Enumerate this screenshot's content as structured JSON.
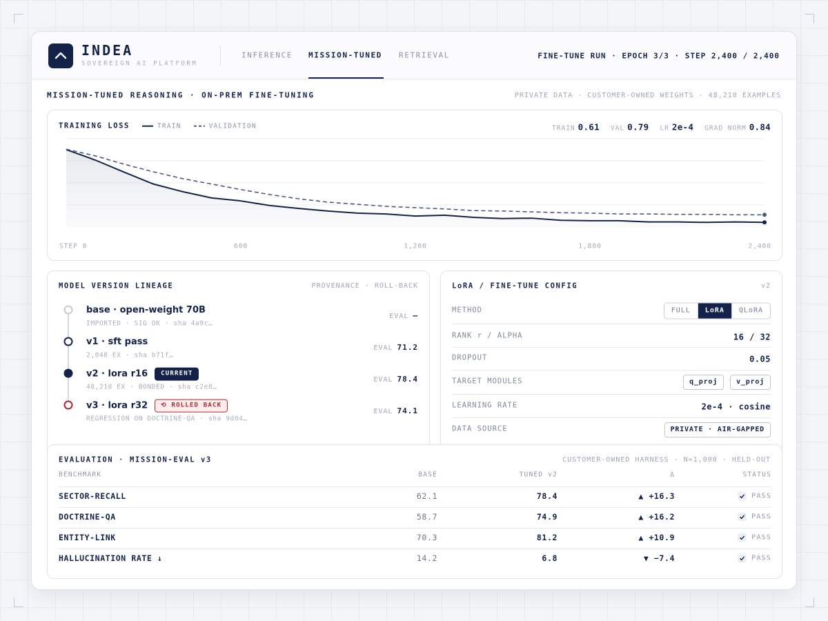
{
  "header": {
    "logo": "INDEA",
    "tagline": "SOVEREIGN AI PLATFORM",
    "tabs": [
      "INFERENCE",
      "MISSION-TUNED",
      "RETRIEVAL"
    ],
    "active_tab": 1,
    "run_status": "FINE-TUNE RUN · EPOCH 3/3 · STEP 2,400 / 2,400"
  },
  "section": {
    "title": "MISSION-TUNED REASONING  ·  ON-PREM FINE-TUNING",
    "meta": "PRIVATE DATA · CUSTOMER-OWNED WEIGHTS · 48,210 EXAMPLES"
  },
  "chart_data": {
    "type": "line",
    "title": "TRAINING LOSS",
    "stats": [
      {
        "label": "TRAIN",
        "value": 0.61
      },
      {
        "label": "VAL",
        "value": 0.79
      },
      {
        "label": "LR",
        "value": "2e-4"
      },
      {
        "label": "GRAD NORM",
        "value": 0.84
      }
    ],
    "x": [
      0,
      100,
      200,
      300,
      400,
      500,
      600,
      700,
      800,
      900,
      1000,
      1100,
      1200,
      1300,
      1400,
      1500,
      1600,
      1700,
      1800,
      1900,
      2000,
      2100,
      2200,
      2300,
      2400
    ],
    "series": [
      {
        "name": "TRAIN",
        "color": "#14224a",
        "dash": false,
        "area": true,
        "values": [
          2.34,
          2.09,
          1.8,
          1.52,
          1.34,
          1.19,
          1.12,
          1.01,
          0.94,
          0.88,
          0.83,
          0.81,
          0.76,
          0.78,
          0.73,
          0.7,
          0.71,
          0.66,
          0.65,
          0.65,
          0.62,
          0.62,
          0.61,
          0.62,
          0.61
        ]
      },
      {
        "name": "VALIDATION",
        "color": "#4a5a85",
        "dash": true,
        "area": false,
        "values": [
          2.35,
          2.19,
          1.99,
          1.81,
          1.65,
          1.52,
          1.39,
          1.27,
          1.17,
          1.09,
          1.04,
          0.99,
          0.96,
          0.93,
          0.89,
          0.88,
          0.86,
          0.84,
          0.83,
          0.81,
          0.81,
          0.8,
          0.8,
          0.79,
          0.79
        ]
      }
    ],
    "xlim": [
      0,
      2400
    ],
    "xticks": [
      {
        "value": 0,
        "label": "STEP 0"
      },
      600,
      {
        "value": 1200,
        "label": "1,200"
      },
      {
        "value": 1800,
        "label": "1,800"
      },
      {
        "value": 2400,
        "label": "2,400"
      }
    ],
    "ylim": [
      0.5,
      2.5
    ]
  },
  "lineage": {
    "title": "MODEL VERSION LINEAGE",
    "meta": "PROVENANCE · ROLL-BACK",
    "eval_label": "EVAL",
    "items": [
      {
        "title": "base · open-weight 70B",
        "meta": "IMPORTED · SIG OK · sha 4a9c…",
        "eval": "—",
        "node_color": "#c5cbd6",
        "filled": false
      },
      {
        "title": "v1 · sft pass",
        "meta": "2,048 EX · sha b71f…",
        "eval": 71.2,
        "node_color": "#14224a",
        "filled": false
      },
      {
        "title": "v2 · lora r16",
        "meta": "48,210 EX · BONDED · sha c2e8…",
        "eval": 78.4,
        "node_color": "#14224a",
        "filled": true,
        "badge": {
          "text": "CURRENT",
          "color": "#14224a",
          "filled": true
        }
      },
      {
        "title": "v3 · lora r32",
        "meta": "REGRESSION ON DOCTRINE-QA · sha 9d04…",
        "eval": 74.1,
        "node_color": "#b3262e",
        "filled": false,
        "badge": {
          "text": "⟲ ROLLED BACK",
          "color": "#b3262e",
          "filled": false
        }
      }
    ]
  },
  "config": {
    "title": "LoRA / FINE-TUNE CONFIG",
    "version": "v2",
    "rows": [
      {
        "label": "METHOD",
        "options": [
          "FULL",
          "LoRA",
          "QLoRA"
        ],
        "selected": 1
      },
      {
        "label": "RANK r / ALPHA",
        "value": "16 / 32"
      },
      {
        "label": "DROPOUT",
        "value": 0.05
      },
      {
        "label": "TARGET MODULES",
        "chips": [
          "q_proj",
          "v_proj"
        ]
      },
      {
        "label": "LEARNING RATE",
        "value": "2e-4 · cosine"
      },
      {
        "label": "DATA SOURCE",
        "chips": [
          "PRIVATE · AIR-GAPPED"
        ]
      }
    ]
  },
  "evaluation": {
    "title": "EVALUATION · MISSION-EVAL v3",
    "meta": "CUSTOMER-OWNED HARNESS · N=1,000 · HELD-OUT",
    "columns": [
      "BENCHMARK",
      "BASE",
      "TUNED v2",
      "Δ",
      "STATUS"
    ],
    "rows": [
      [
        "SECTOR-RECALL",
        62.1,
        78.4,
        "▲ +16.3",
        "PASS"
      ],
      [
        "DOCTRINE-QA",
        58.7,
        74.9,
        "▲ +16.2",
        "PASS"
      ],
      [
        "ENTITY-LINK",
        70.3,
        81.2,
        "▲ +10.9",
        "PASS"
      ],
      [
        "HALLUCINATION RATE ↓",
        14.2,
        6.8,
        "▼ −7.4",
        "PASS"
      ]
    ]
  }
}
